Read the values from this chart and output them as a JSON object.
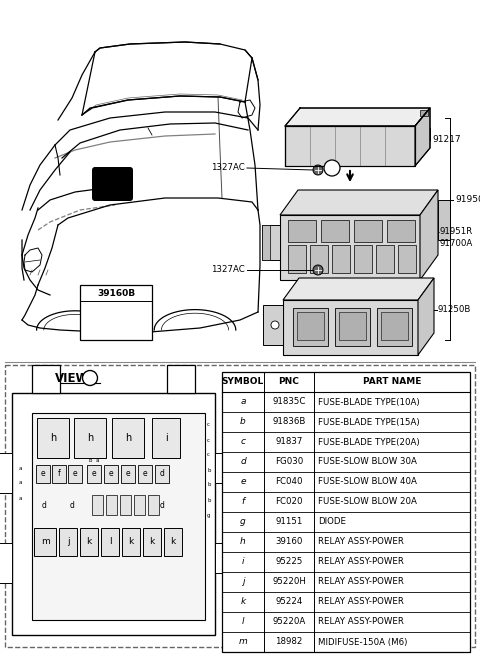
{
  "bg_color": "#ffffff",
  "table_headers": [
    "SYMBOL",
    "PNC",
    "PART NAME"
  ],
  "table_rows": [
    [
      "a",
      "91835C",
      "FUSE-BLADE TYPE(10A)"
    ],
    [
      "b",
      "91836B",
      "FUSE-BLADE TYPE(15A)"
    ],
    [
      "c",
      "91837",
      "FUSE-BLADE TYPE(20A)"
    ],
    [
      "d",
      "FG030",
      "FUSE-SLOW BLOW 30A"
    ],
    [
      "e",
      "FC040",
      "FUSE-SLOW BLOW 40A"
    ],
    [
      "f",
      "FC020",
      "FUSE-SLOW BLOW 20A"
    ],
    [
      "g",
      "91151",
      "DIODE"
    ],
    [
      "h",
      "39160",
      "RELAY ASSY-POWER"
    ],
    [
      "i",
      "95225",
      "RELAY ASSY-POWER"
    ],
    [
      "j",
      "95220H",
      "RELAY ASSY-POWER"
    ],
    [
      "k",
      "95224",
      "RELAY ASSY-POWER"
    ],
    [
      "l",
      "95220A",
      "RELAY ASSY-POWER"
    ],
    [
      "m",
      "18982",
      "MIDIFUSE-150A (M6)"
    ]
  ],
  "line_color": "#000000"
}
